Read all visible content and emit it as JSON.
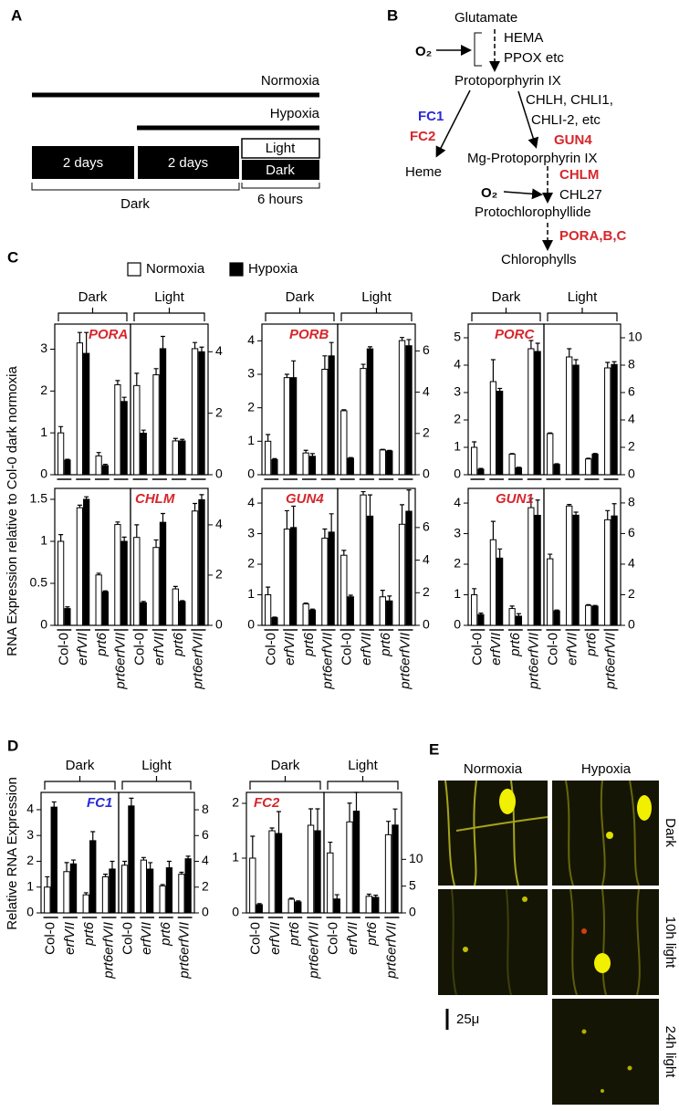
{
  "panel_a": {
    "label": "A",
    "normoxia": "Normoxia",
    "hypoxia": "Hypoxia",
    "period_1": "2 days",
    "period_2": "2 days",
    "light": "Light",
    "dark": "Dark",
    "dark_span": "Dark",
    "hours": "6 hours"
  },
  "panel_b": {
    "label": "B",
    "glutamate": "Glutamate",
    "o2_top": "O₂",
    "hema": "HEMA",
    "ppox": "PPOX etc",
    "protoporphyrin": "Protoporphyrin IX",
    "fc1": "FC1",
    "fc2": "FC2",
    "chlh": "CHLH, CHLI1,",
    "chli2": "CHLI-2, etc",
    "gun4": "GUN4",
    "heme": "Heme",
    "mg_proto": "Mg-Protoporphyrin IX",
    "chlm": "CHLM",
    "o2_bottom": "O₂",
    "chl27": "CHL27",
    "protochlorophyllide": "Protochlorophyllide",
    "por": "PORA,B,C",
    "chlorophylls": "Chlorophylls"
  },
  "panel_c": {
    "label": "C",
    "y_label": "RNA Expression relative to Col-0 dark normoxia"
  },
  "panel_d": {
    "label": "D",
    "y_label": "Relative RNA Expression"
  },
  "panel_e": {
    "label": "E",
    "columns": [
      "Normoxia",
      "Hypoxia"
    ],
    "rows": [
      "Dark",
      "10h light",
      "24h light"
    ],
    "scale_bar": "25μ"
  },
  "chart_data": [
    {
      "type": "bar",
      "title": "PORA",
      "title_color": "#d7262b",
      "groups": [
        "Dark",
        "Light"
      ],
      "ylim": [
        0,
        3.6
      ],
      "yticks": [
        0,
        1,
        2,
        3
      ],
      "y2lim": [
        0,
        4.9
      ],
      "y2ticks": [
        0,
        2,
        4
      ],
      "series": [
        {
          "name": "Normoxia",
          "color": "#ffffff",
          "values": [
            1.0,
            3.15,
            0.45,
            2.15
          ],
          "errors": [
            0.15,
            0.25,
            0.08,
            0.1
          ]
        },
        {
          "name": "Hypoxia",
          "color": "#000000",
          "values": [
            0.35,
            2.9,
            0.22,
            1.75
          ],
          "errors": [
            0.02,
            0.5,
            0.03,
            0.1
          ]
        },
        {
          "name": "Normoxia",
          "color": "#ffffff",
          "axis": "y2",
          "values": [
            2.9,
            3.25,
            1.1,
            4.1
          ],
          "errors": [
            0.4,
            0.2,
            0.08,
            0.2
          ]
        },
        {
          "name": "Hypoxia",
          "color": "#000000",
          "axis": "y2",
          "values": [
            1.35,
            4.1,
            1.1,
            4.0
          ],
          "errors": [
            0.1,
            0.4,
            0.05,
            0.15
          ]
        }
      ]
    },
    {
      "type": "bar",
      "title": "PORB",
      "title_color": "#d7262b",
      "groups": [
        "Dark",
        "Light"
      ],
      "ylim": [
        0,
        4.5
      ],
      "yticks": [
        0,
        1,
        2,
        3,
        4
      ],
      "y2lim": [
        0,
        7.3
      ],
      "y2ticks": [
        0,
        2,
        4,
        6
      ],
      "series": [
        {
          "name": "Normoxia",
          "color": "#ffffff",
          "values": [
            1.0,
            2.9,
            0.65,
            3.15
          ],
          "errors": [
            0.2,
            0.1,
            0.08,
            0.4
          ]
        },
        {
          "name": "Hypoxia",
          "color": "#000000",
          "values": [
            0.45,
            2.9,
            0.55,
            3.55
          ],
          "errors": [
            0.03,
            0.5,
            0.08,
            0.4
          ]
        },
        {
          "name": "Normoxia",
          "color": "#ffffff",
          "axis": "y2",
          "values": [
            3.1,
            5.15,
            1.2,
            6.5
          ],
          "errors": [
            0.05,
            0.2,
            0.03,
            0.15
          ]
        },
        {
          "name": "Hypoxia",
          "color": "#000000",
          "axis": "y2",
          "values": [
            0.8,
            6.1,
            1.15,
            6.25
          ],
          "errors": [
            0.03,
            0.1,
            0.03,
            0.3
          ]
        }
      ]
    },
    {
      "type": "bar",
      "title": "PORC",
      "title_color": "#d7262b",
      "groups": [
        "Dark",
        "Light"
      ],
      "ylim": [
        0,
        5.5
      ],
      "yticks": [
        0,
        1,
        2,
        3,
        4,
        5
      ],
      "y2lim": [
        0,
        11
      ],
      "y2ticks": [
        0,
        2,
        4,
        6,
        8,
        10
      ],
      "series": [
        {
          "name": "Normoxia",
          "color": "#ffffff",
          "values": [
            1.0,
            3.4,
            0.75,
            4.6
          ],
          "errors": [
            0.2,
            0.8,
            0.02,
            0.3
          ]
        },
        {
          "name": "Hypoxia",
          "color": "#000000",
          "values": [
            0.2,
            3.05,
            0.25,
            4.5
          ],
          "errors": [
            0.03,
            0.1,
            0.02,
            0.3
          ]
        },
        {
          "name": "Normoxia",
          "color": "#ffffff",
          "axis": "y2",
          "values": [
            3.0,
            8.6,
            1.15,
            7.8
          ],
          "errors": [
            0.05,
            0.6,
            0.05,
            0.4
          ]
        },
        {
          "name": "Hypoxia",
          "color": "#000000",
          "axis": "y2",
          "values": [
            0.75,
            8.0,
            1.5,
            8.05
          ],
          "errors": [
            0.05,
            0.4,
            0.05,
            0.2
          ]
        }
      ]
    },
    {
      "type": "bar",
      "title": "CHLM",
      "title_color": "#d7262b",
      "categories": [
        "Col-0",
        "erfVII",
        "prt6",
        "prt6erfVII"
      ],
      "ylim": [
        0,
        1.63
      ],
      "yticks": [
        0,
        0.5,
        1,
        1.5
      ],
      "y2lim": [
        0,
        5.45
      ],
      "y2ticks": [
        0,
        2,
        4
      ],
      "series": [
        {
          "name": "Normoxia",
          "color": "#ffffff",
          "values": [
            1.0,
            1.4,
            0.6,
            1.2
          ],
          "errors": [
            0.08,
            0.03,
            0.02,
            0.03
          ]
        },
        {
          "name": "Hypoxia",
          "color": "#000000",
          "values": [
            0.2,
            1.5,
            0.4,
            1.0
          ],
          "errors": [
            0.02,
            0.03,
            0.01,
            0.05
          ]
        },
        {
          "name": "Normoxia",
          "color": "#ffffff",
          "axis": "y2",
          "values": [
            3.5,
            3.1,
            1.45,
            4.55
          ],
          "errors": [
            0.5,
            0.3,
            0.1,
            0.3
          ]
        },
        {
          "name": "Hypoxia",
          "color": "#000000",
          "axis": "y2",
          "values": [
            0.9,
            4.1,
            0.95,
            5.0
          ],
          "errors": [
            0.05,
            0.35,
            0.03,
            0.2
          ]
        }
      ]
    },
    {
      "type": "bar",
      "title": "GUN4",
      "title_color": "#d7262b",
      "categories": [
        "Col-0",
        "erfVII",
        "prt6",
        "prt6erfVII"
      ],
      "ylim": [
        0,
        4.48
      ],
      "yticks": [
        0,
        1,
        2,
        3,
        4
      ],
      "y2lim": [
        0,
        8.4
      ],
      "y2ticks": [
        0,
        2,
        4,
        6
      ],
      "series": [
        {
          "name": "Normoxia",
          "color": "#ffffff",
          "values": [
            1.0,
            3.15,
            0.7,
            2.85
          ],
          "errors": [
            0.25,
            0.6,
            0.03,
            0.3
          ]
        },
        {
          "name": "Hypoxia",
          "color": "#000000",
          "values": [
            0.25,
            3.2,
            0.5,
            3.05
          ],
          "errors": [
            0.02,
            0.7,
            0.03,
            0.6
          ]
        },
        {
          "name": "Normoxia",
          "color": "#ffffff",
          "axis": "y2",
          "values": [
            4.3,
            8.0,
            1.75,
            6.2
          ],
          "errors": [
            0.3,
            0.2,
            0.4,
            1.2
          ]
        },
        {
          "name": "Hypoxia",
          "color": "#000000",
          "axis": "y2",
          "values": [
            1.75,
            6.7,
            1.5,
            7.0
          ],
          "errors": [
            0.1,
            1.3,
            0.3,
            1.3
          ]
        }
      ]
    },
    {
      "type": "bar",
      "title": "GUN1",
      "title_color": "#d7262b",
      "categories": [
        "Col-0",
        "erfVII",
        "prt6",
        "prt6erfVII"
      ],
      "ylim": [
        0,
        4.48
      ],
      "yticks": [
        0,
        1,
        2,
        3,
        4
      ],
      "y2lim": [
        0,
        8.95
      ],
      "y2ticks": [
        0,
        2,
        4,
        6,
        8
      ],
      "series": [
        {
          "name": "Normoxia",
          "color": "#ffffff",
          "values": [
            1.0,
            2.8,
            0.55,
            3.85
          ],
          "errors": [
            0.2,
            0.6,
            0.08,
            0.3
          ]
        },
        {
          "name": "Hypoxia",
          "color": "#000000",
          "values": [
            0.35,
            2.2,
            0.3,
            3.6
          ],
          "errors": [
            0.05,
            0.3,
            0.08,
            0.5
          ]
        },
        {
          "name": "Normoxia",
          "color": "#ffffff",
          "axis": "y2",
          "values": [
            4.35,
            7.8,
            1.3,
            6.9
          ],
          "errors": [
            0.3,
            0.1,
            0.05,
            0.6
          ]
        },
        {
          "name": "Hypoxia",
          "color": "#000000",
          "axis": "y2",
          "values": [
            0.95,
            7.2,
            1.25,
            7.15
          ],
          "errors": [
            0.05,
            0.2,
            0.05,
            0.8
          ]
        }
      ]
    },
    {
      "type": "bar",
      "title": "FC1",
      "title_color": "#2a2ad6",
      "groups": [
        "Dark",
        "Light"
      ],
      "categories": [
        "Col-0",
        "erfVII",
        "prt6",
        "prt6erfVII"
      ],
      "ylim": [
        0,
        4.67
      ],
      "yticks": [
        0,
        1,
        2,
        3,
        4
      ],
      "y2lim": [
        0,
        9.35
      ],
      "y2ticks": [
        0,
        2,
        4,
        6,
        8
      ],
      "series": [
        {
          "name": "Normoxia",
          "color": "#ffffff",
          "values": [
            1.0,
            1.6,
            0.7,
            1.4
          ],
          "errors": [
            0.4,
            0.35,
            0.08,
            0.1
          ]
        },
        {
          "name": "Hypoxia",
          "color": "#000000",
          "values": [
            4.1,
            1.9,
            2.8,
            1.7
          ],
          "errors": [
            0.2,
            0.15,
            0.35,
            0.3
          ]
        },
        {
          "name": "Normoxia",
          "color": "#ffffff",
          "axis": "y2",
          "values": [
            3.7,
            4.1,
            2.1,
            3.0
          ],
          "errors": [
            0.3,
            0.2,
            0.1,
            0.15
          ]
        },
        {
          "name": "Hypoxia",
          "color": "#000000",
          "axis": "y2",
          "values": [
            8.3,
            3.4,
            3.5,
            4.2
          ],
          "errors": [
            0.6,
            0.5,
            0.5,
            0.2
          ]
        }
      ]
    },
    {
      "type": "bar",
      "title": "FC2",
      "title_color": "#d7262b",
      "groups": [
        "Dark",
        "Light"
      ],
      "categories": [
        "Col-0",
        "erfVII",
        "prt6",
        "prt6erfVII"
      ],
      "ylim": [
        0,
        2.2
      ],
      "yticks": [
        0,
        1,
        2
      ],
      "y2lim": [
        0,
        22.5
      ],
      "y2ticks": [
        0,
        5,
        10
      ],
      "series": [
        {
          "name": "Normoxia",
          "color": "#ffffff",
          "values": [
            1.0,
            1.5,
            0.25,
            1.6
          ],
          "errors": [
            0.4,
            0.05,
            0.02,
            0.3
          ]
        },
        {
          "name": "Hypoxia",
          "color": "#000000",
          "values": [
            0.15,
            1.45,
            0.2,
            1.5
          ],
          "errors": [
            0.02,
            0.4,
            0.02,
            0.4
          ]
        },
        {
          "name": "Normoxia",
          "color": "#ffffff",
          "axis": "y2",
          "values": [
            11.2,
            17.0,
            3.1,
            14.6
          ],
          "errors": [
            2.0,
            3.5,
            0.4,
            2.5
          ]
        },
        {
          "name": "Hypoxia",
          "color": "#000000",
          "axis": "y2",
          "values": [
            2.6,
            19.0,
            2.9,
            16.4
          ],
          "errors": [
            0.8,
            3.5,
            0.4,
            3.0
          ]
        }
      ]
    }
  ]
}
